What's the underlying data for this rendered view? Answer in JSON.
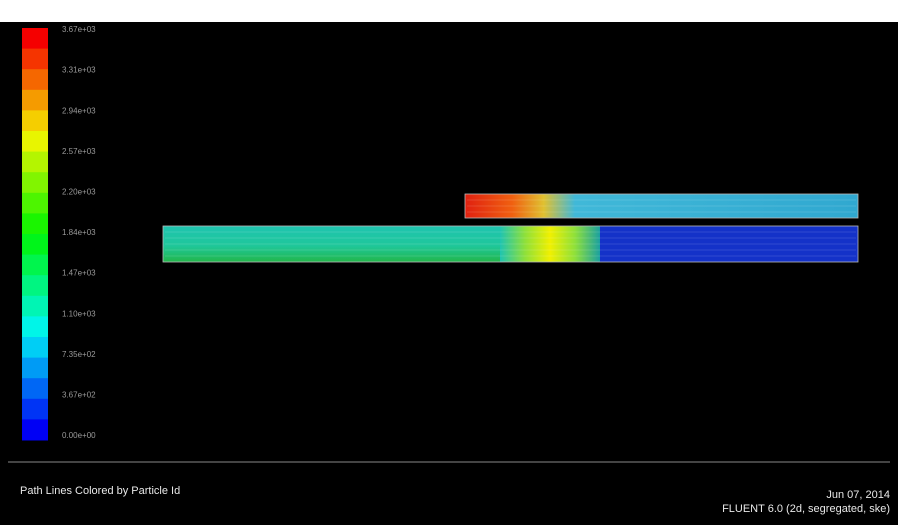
{
  "colorbar": {
    "labels": [
      "3.67e+03",
      "3.31e+03",
      "2.94e+03",
      "2.57e+03",
      "2.20e+03",
      "1.84e+03",
      "1.47e+03",
      "1.10e+03",
      "7.35e+02",
      "3.67e+02",
      "0.00e+00"
    ]
  },
  "footer": {
    "caption": "Path Lines Colored by Particle Id",
    "date": "Jun 07, 2014",
    "software": "FLUENT 6.0 (2d, segregated, ske)"
  }
}
